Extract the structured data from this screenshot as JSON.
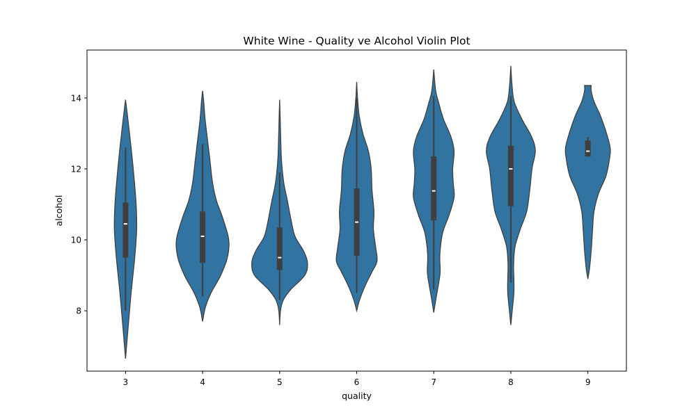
{
  "chart_data": {
    "type": "violin",
    "title": "White Wine - Quality ve Alcohol Violin Plot",
    "xlabel": "quality",
    "ylabel": "alcohol",
    "categories": [
      "3",
      "4",
      "5",
      "6",
      "7",
      "8",
      "9"
    ],
    "ylim": [
      6.3,
      15.35
    ],
    "yticks": [
      8,
      10,
      12,
      14
    ],
    "grid": false,
    "colors": {
      "fill": "#3274a1",
      "edge": "#3f3f3f",
      "box": "#3f3f3f",
      "median": "#ffffff"
    },
    "series": [
      {
        "category": "3",
        "profile": [
          [
            6.65,
            0.0
          ],
          [
            7.5,
            0.09
          ],
          [
            8.5,
            0.2
          ],
          [
            9.5,
            0.33
          ],
          [
            10.3,
            0.4
          ],
          [
            11.0,
            0.38
          ],
          [
            11.8,
            0.3
          ],
          [
            12.6,
            0.2
          ],
          [
            13.3,
            0.1
          ],
          [
            13.95,
            0.0
          ]
        ],
        "whisker": [
          8.0,
          12.6
        ],
        "q1": 9.5,
        "median": 10.45,
        "q3": 11.05
      },
      {
        "category": "4",
        "profile": [
          [
            7.7,
            0.0
          ],
          [
            8.1,
            0.1
          ],
          [
            8.5,
            0.3
          ],
          [
            9.0,
            0.65
          ],
          [
            9.5,
            0.89
          ],
          [
            10.0,
            0.94
          ],
          [
            10.6,
            0.73
          ],
          [
            11.1,
            0.5
          ],
          [
            11.6,
            0.36
          ],
          [
            12.2,
            0.27
          ],
          [
            12.8,
            0.18
          ],
          [
            13.4,
            0.09
          ],
          [
            13.9,
            0.04
          ],
          [
            14.2,
            0.0
          ]
        ],
        "whisker": [
          8.4,
          12.7
        ],
        "q1": 9.35,
        "median": 10.1,
        "q3": 10.8
      },
      {
        "category": "5",
        "profile": [
          [
            7.6,
            0.0
          ],
          [
            8.0,
            0.03
          ],
          [
            8.3,
            0.13
          ],
          [
            8.6,
            0.4
          ],
          [
            9.0,
            0.9
          ],
          [
            9.35,
            1.0
          ],
          [
            9.7,
            0.85
          ],
          [
            10.1,
            0.55
          ],
          [
            10.6,
            0.4
          ],
          [
            11.1,
            0.28
          ],
          [
            11.6,
            0.15
          ],
          [
            12.2,
            0.07
          ],
          [
            12.8,
            0.04
          ],
          [
            13.4,
            0.02
          ],
          [
            13.95,
            0.0
          ]
        ],
        "whisker": [
          8.3,
          11.9
        ],
        "q1": 9.15,
        "median": 9.5,
        "q3": 10.35
      },
      {
        "category": "6",
        "profile": [
          [
            8.0,
            0.0
          ],
          [
            8.3,
            0.1
          ],
          [
            8.7,
            0.3
          ],
          [
            9.1,
            0.55
          ],
          [
            9.4,
            0.73
          ],
          [
            9.8,
            0.68
          ],
          [
            10.3,
            0.6
          ],
          [
            10.8,
            0.62
          ],
          [
            11.4,
            0.55
          ],
          [
            12.0,
            0.52
          ],
          [
            12.5,
            0.42
          ],
          [
            13.0,
            0.22
          ],
          [
            13.5,
            0.09
          ],
          [
            14.0,
            0.03
          ],
          [
            14.45,
            0.0
          ]
        ],
        "whisker": [
          8.5,
          14.0
        ],
        "q1": 9.55,
        "median": 10.5,
        "q3": 11.45
      },
      {
        "category": "7",
        "profile": [
          [
            7.95,
            0.0
          ],
          [
            8.3,
            0.07
          ],
          [
            8.8,
            0.18
          ],
          [
            9.1,
            0.23
          ],
          [
            9.6,
            0.22
          ],
          [
            10.2,
            0.32
          ],
          [
            10.7,
            0.55
          ],
          [
            11.2,
            0.73
          ],
          [
            11.6,
            0.7
          ],
          [
            12.0,
            0.68
          ],
          [
            12.5,
            0.73
          ],
          [
            12.9,
            0.62
          ],
          [
            13.4,
            0.35
          ],
          [
            13.8,
            0.2
          ],
          [
            14.2,
            0.07
          ],
          [
            14.8,
            0.0
          ]
        ],
        "whisker": [
          8.6,
          14.05
        ],
        "q1": 10.55,
        "median": 11.38,
        "q3": 12.35
      },
      {
        "category": "8",
        "profile": [
          [
            7.6,
            0.0
          ],
          [
            8.0,
            0.05
          ],
          [
            8.5,
            0.11
          ],
          [
            8.9,
            0.11
          ],
          [
            9.3,
            0.1
          ],
          [
            9.8,
            0.15
          ],
          [
            10.3,
            0.34
          ],
          [
            10.8,
            0.57
          ],
          [
            11.4,
            0.68
          ],
          [
            12.0,
            0.76
          ],
          [
            12.5,
            0.88
          ],
          [
            12.9,
            0.75
          ],
          [
            13.4,
            0.4
          ],
          [
            13.9,
            0.12
          ],
          [
            14.4,
            0.04
          ],
          [
            14.9,
            0.0
          ]
        ],
        "whisker": [
          8.8,
          14.05
        ],
        "q1": 10.95,
        "median": 12.0,
        "q3": 12.65
      },
      {
        "category": "9",
        "profile": [
          [
            8.9,
            0.0
          ],
          [
            9.2,
            0.06
          ],
          [
            9.7,
            0.12
          ],
          [
            10.3,
            0.17
          ],
          [
            10.8,
            0.22
          ],
          [
            11.3,
            0.38
          ],
          [
            11.8,
            0.65
          ],
          [
            12.3,
            0.78
          ],
          [
            12.6,
            0.8
          ],
          [
            13.0,
            0.67
          ],
          [
            13.5,
            0.45
          ],
          [
            13.9,
            0.22
          ],
          [
            14.2,
            0.12
          ],
          [
            14.35,
            0.12
          ]
        ],
        "whisker": [
          12.35,
          12.9
        ],
        "q1": 12.35,
        "median": 12.5,
        "q3": 12.8
      }
    ]
  }
}
